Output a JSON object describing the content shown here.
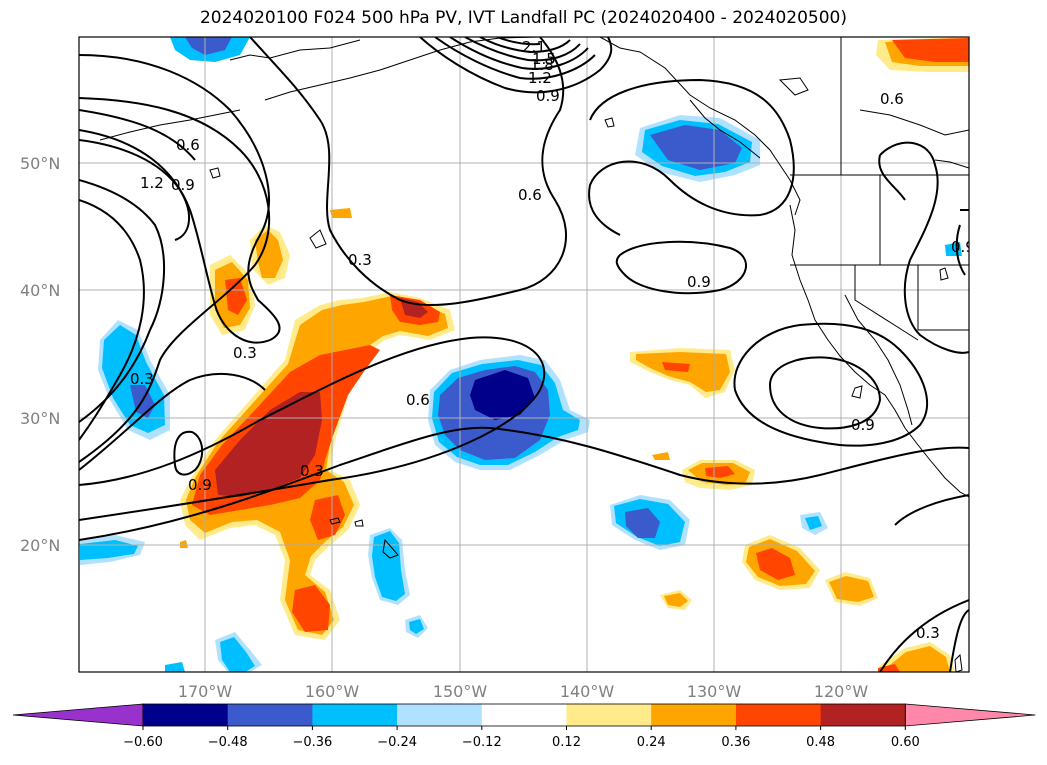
{
  "title": "2024020100 F024 500 hPa PV, IVT Landfall PC (2024020400 - 2024020500)",
  "lat_labels": [
    "50°N",
    "40°N",
    "30°N",
    "20°N"
  ],
  "lon_labels": [
    "170°W",
    "160°W",
    "150°W",
    "140°W",
    "130°W",
    "120°W"
  ],
  "colorbar": {
    "ticks": [
      "−0.60",
      "−0.48",
      "−0.36",
      "−0.24",
      "−0.12",
      "0.12",
      "0.24",
      "0.36",
      "0.48",
      "0.60"
    ],
    "colors": [
      "#9932cc",
      "#00008b",
      "#3b5bcc",
      "#00bfff",
      "#b0e2ff",
      "#ffffff",
      "#ffeb8a",
      "#ffa500",
      "#ff4500",
      "#b22222",
      "#ff88aa"
    ]
  },
  "contour_labels": [
    "2.1",
    "1.8",
    "1.2",
    "1.5",
    "0.9",
    "0.6",
    "0.9",
    "1.2",
    "0.6",
    "0.3",
    "0.3",
    "0.9",
    "0.6",
    "0.3",
    "0.9",
    "0.9",
    "0.6",
    "0.9",
    "0.3",
    "0.3"
  ],
  "colors": {
    "contour": "#000000",
    "grid": "#b0b0b0",
    "coast": "#000000"
  }
}
